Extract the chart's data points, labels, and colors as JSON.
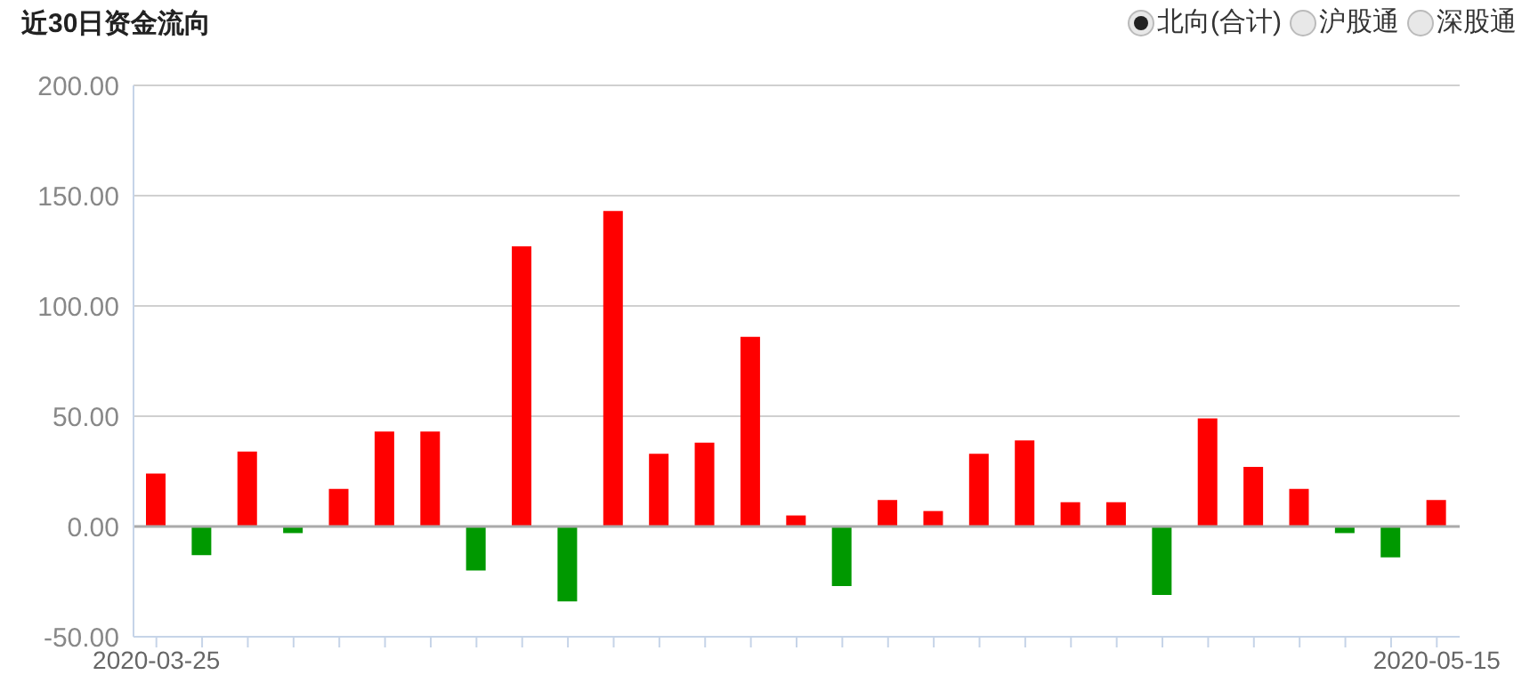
{
  "chart_data": {
    "type": "bar",
    "title": "近30日资金流向",
    "annotations": [
      "北向(合计)",
      "沪股通",
      "深股通"
    ],
    "categories": [
      "2020-03-25",
      null,
      null,
      null,
      null,
      null,
      null,
      null,
      null,
      null,
      null,
      null,
      null,
      null,
      null,
      null,
      null,
      null,
      null,
      null,
      null,
      null,
      null,
      null,
      null,
      null,
      null,
      null,
      "2020-05-15"
    ],
    "values": [
      24,
      -13,
      34,
      -3,
      17,
      43,
      43,
      -20,
      127,
      -34,
      143,
      33,
      38,
      86,
      5,
      -27,
      12,
      7,
      33,
      39,
      11,
      11,
      -31,
      49,
      27,
      17,
      -3,
      -14,
      12
    ],
    "colors": [
      "#ff0000",
      "#009900",
      "#ff0000",
      "#009900",
      "#ff0000",
      "#ff0000",
      "#ff0000",
      "#009900",
      "#ff0000",
      "#009900",
      "#ff0000",
      "#ff0000",
      "#ff0000",
      "#ff0000",
      "#ff0000",
      "#009900",
      "#ff0000",
      "#ff0000",
      "#ff0000",
      "#ff0000",
      "#ff0000",
      "#ff0000",
      "#009900",
      "#ff0000",
      "#ff0000",
      "#ff0000",
      "#009900",
      "#009900",
      "#ff0000"
    ],
    "ylim": [
      -50,
      200
    ],
    "yticks": [
      {
        "value": -50,
        "label": "-50.00"
      },
      {
        "value": 0,
        "label": "0.00"
      },
      {
        "value": 50,
        "label": "50.00"
      },
      {
        "value": 100,
        "label": "100.00"
      },
      {
        "value": 150,
        "label": "150.00"
      },
      {
        "value": 200,
        "label": "200.00"
      }
    ],
    "grid": "y",
    "legend": false
  }
}
